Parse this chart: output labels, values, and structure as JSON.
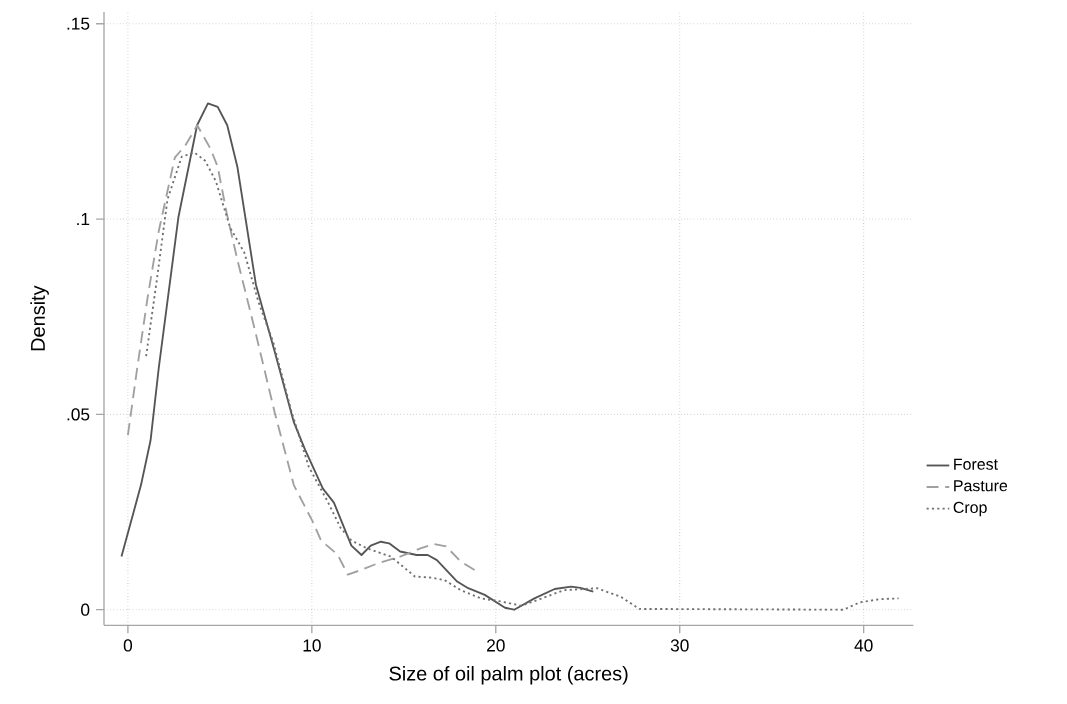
{
  "chart_data": {
    "type": "line",
    "xlabel": "Size of oil palm plot (acres)",
    "ylabel": "Density",
    "xlim": [
      -1.3,
      42.7
    ],
    "ylim": [
      -0.004,
      0.153
    ],
    "xticks": [
      0,
      10,
      20,
      30,
      40
    ],
    "yticks": [
      0,
      {
        "value": 0.05,
        "label": ".05"
      },
      {
        "value": 0.1,
        "label": ".1"
      },
      {
        "value": 0.15,
        "label": ".15"
      }
    ],
    "grid": true,
    "legend": "right",
    "marker": "none",
    "series": [
      {
        "name": "Forest",
        "color": "#555555",
        "line_style": "solid",
        "x": [
          -0.35,
          0.71,
          1.23,
          1.68,
          2.75,
          3.76,
          4.35,
          4.88,
          5.4,
          5.95,
          6.96,
          7.99,
          9.02,
          9.63,
          10.6,
          11.2,
          12.15,
          12.7,
          13.2,
          13.75,
          14.2,
          14.8,
          15.7,
          16.3,
          16.8,
          17.9,
          18.5,
          19.4,
          20.5,
          21.0,
          22.1,
          23.2,
          24.1,
          24.6,
          25.3
        ],
        "values": [
          0.0136,
          0.0319,
          0.0433,
          0.062,
          0.1006,
          0.124,
          0.1296,
          0.1287,
          0.124,
          0.1134,
          0.0832,
          0.0659,
          0.048,
          0.041,
          0.031,
          0.0274,
          0.0164,
          0.014,
          0.0164,
          0.0174,
          0.017,
          0.0149,
          0.014,
          0.014,
          0.0127,
          0.0072,
          0.0055,
          0.0038,
          0.0005,
          0.0,
          0.0029,
          0.0053,
          0.0059,
          0.0056,
          0.0046
        ]
      },
      {
        "name": "Pasture",
        "color": "#a0a0a0",
        "line_style": "dashed",
        "x": [
          0.0,
          0.51,
          1.09,
          1.68,
          2.55,
          3.13,
          3.77,
          4.49,
          4.88,
          5.37,
          5.95,
          6.92,
          7.99,
          9.02,
          10.02,
          10.5,
          11.4,
          11.95,
          12.7,
          13.6,
          14.8,
          15.9,
          16.65,
          17.3,
          18.1,
          19.0
        ],
        "values": [
          0.0447,
          0.062,
          0.0805,
          0.097,
          0.1157,
          0.1189,
          0.124,
          0.118,
          0.1134,
          0.1015,
          0.0896,
          0.0713,
          0.0503,
          0.0319,
          0.0228,
          0.0177,
          0.0141,
          0.009,
          0.0102,
          0.0119,
          0.0136,
          0.0157,
          0.0168,
          0.0162,
          0.0123,
          0.0097
        ]
      },
      {
        "name": "Crop",
        "color": "#707070",
        "line_style": "dotted",
        "x": [
          0.99,
          1.56,
          2.15,
          2.93,
          3.62,
          4.2,
          4.78,
          5.56,
          6.33,
          7.11,
          7.9,
          8.87,
          9.84,
          10.8,
          11.57,
          12.15,
          13.0,
          14.3,
          15.6,
          16.5,
          17.2,
          18.1,
          19.2,
          20.3,
          21.4,
          22.5,
          23.7,
          25.5,
          26.8,
          27.8,
          38.9,
          39.8,
          40.9,
          41.9
        ],
        "values": [
          0.0649,
          0.084,
          0.105,
          0.116,
          0.117,
          0.1149,
          0.1097,
          0.0978,
          0.0914,
          0.0786,
          0.0685,
          0.0511,
          0.0365,
          0.0282,
          0.0209,
          0.0177,
          0.0157,
          0.0136,
          0.0085,
          0.0082,
          0.0076,
          0.005,
          0.0029,
          0.0021,
          0.001,
          0.0029,
          0.005,
          0.0055,
          0.0033,
          0.0002,
          0.0,
          0.0019,
          0.0027,
          0.0029
        ]
      }
    ]
  }
}
